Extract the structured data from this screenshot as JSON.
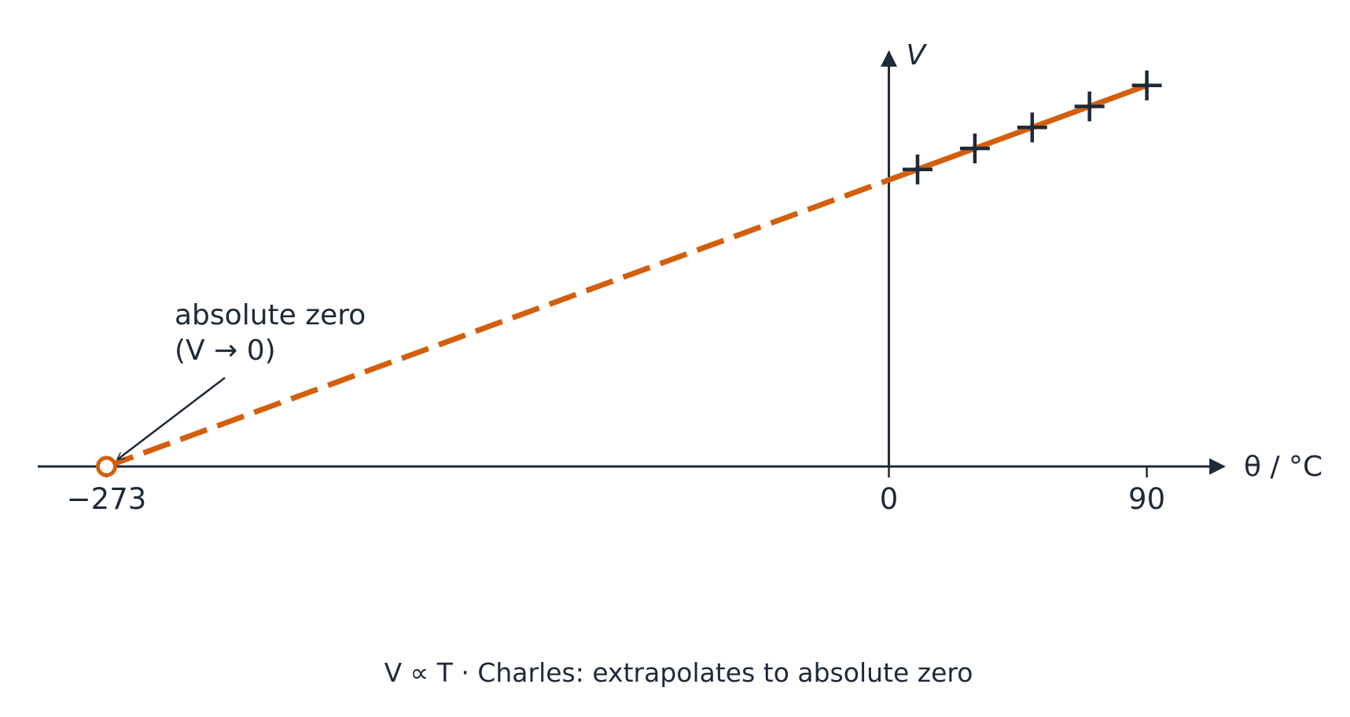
{
  "chart_data": {
    "type": "scatter",
    "x_label": "θ / °C",
    "y_label": "V",
    "caption": "V ∝ T  ·  Charles: extrapolates to absolute zero",
    "x": [
      10,
      30,
      50,
      70,
      90
    ],
    "values": [
      283,
      303,
      323,
      343,
      363
    ],
    "marker_color": "#1f2937",
    "fit": {
      "x": [
        -273,
        0,
        90
      ],
      "values": [
        0,
        273,
        363
      ],
      "color": "#d35f0d"
    },
    "annotation": {
      "lines": [
        "absolute zero",
        "(V → 0)"
      ],
      "x": -273,
      "y": 0
    },
    "xlim": [
      -297,
      117
    ],
    "ylim": [
      0,
      395
    ],
    "xticks": [
      {
        "value": -273,
        "label": "−273"
      },
      0,
      90
    ]
  }
}
